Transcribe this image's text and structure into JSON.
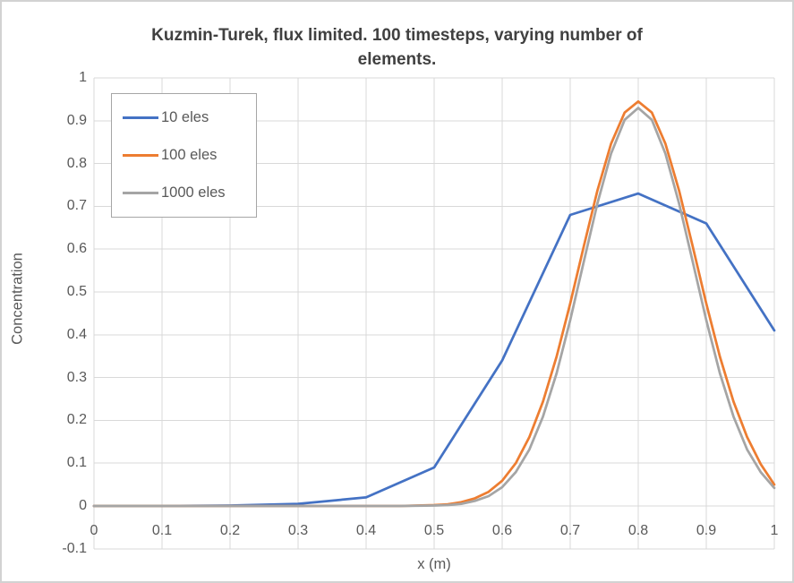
{
  "colors": {
    "series_blue": "#4472C4",
    "series_orange": "#ED7D31",
    "series_gray": "#A5A5A5",
    "gridline": "#D9D9D9",
    "axis_text": "#595959",
    "title_text": "#404040",
    "legend_border": "#A6A6A6",
    "frame_border": "#D2D2D2"
  },
  "chart_data": {
    "type": "line",
    "title": "Kuzmin-Turek, flux limited. 100 timesteps, varying number of elements.",
    "title_lines": [
      "Kuzmin-Turek, flux limited. 100 timesteps, varying number of",
      "elements."
    ],
    "xlabel": "x (m)",
    "ylabel": "Concentration",
    "xlim": [
      0,
      1
    ],
    "ylim": [
      -0.1,
      1
    ],
    "grid": true,
    "legend_position": "inside-top-left",
    "xticks": {
      "values": [
        0,
        0.1,
        0.2,
        0.3,
        0.4,
        0.5,
        0.6,
        0.7,
        0.8,
        0.9,
        1
      ],
      "labels": [
        "0",
        "0.1",
        "0.2",
        "0.3",
        "0.4",
        "0.5",
        "0.6",
        "0.7",
        "0.8",
        "0.9",
        "1"
      ]
    },
    "yticks": {
      "values": [
        1,
        0.9,
        0.8,
        0.7,
        0.6,
        0.5,
        0.4,
        0.3,
        0.2,
        0.1,
        0,
        -0.1
      ],
      "labels": [
        "1",
        "0.9",
        "0.8",
        "0.7",
        "0.6",
        "0.5",
        "0.4",
        "0.3",
        "0.2",
        "0.1",
        "0",
        "-0.1"
      ]
    },
    "series": [
      {
        "name": "10 eles",
        "color": "#4472C4",
        "points": [
          [
            0,
            0
          ],
          [
            0.1,
            0
          ],
          [
            0.2,
            0.001
          ],
          [
            0.3,
            0.005
          ],
          [
            0.4,
            0.02
          ],
          [
            0.5,
            0.09
          ],
          [
            0.6,
            0.34
          ],
          [
            0.7,
            0.68
          ],
          [
            0.8,
            0.73
          ],
          [
            0.9,
            0.66
          ],
          [
            1,
            0.41
          ]
        ]
      },
      {
        "name": "100 eles",
        "color": "#ED7D31",
        "points": [
          [
            0,
            0
          ],
          [
            0.1,
            0
          ],
          [
            0.2,
            0
          ],
          [
            0.3,
            0
          ],
          [
            0.4,
            0
          ],
          [
            0.45,
            0
          ],
          [
            0.5,
            0.002
          ],
          [
            0.52,
            0.004
          ],
          [
            0.54,
            0.009
          ],
          [
            0.56,
            0.018
          ],
          [
            0.58,
            0.033
          ],
          [
            0.6,
            0.059
          ],
          [
            0.62,
            0.1
          ],
          [
            0.64,
            0.161
          ],
          [
            0.66,
            0.244
          ],
          [
            0.68,
            0.349
          ],
          [
            0.7,
            0.473
          ],
          [
            0.72,
            0.607
          ],
          [
            0.74,
            0.737
          ],
          [
            0.76,
            0.846
          ],
          [
            0.78,
            0.919
          ],
          [
            0.8,
            0.945
          ],
          [
            0.82,
            0.919
          ],
          [
            0.84,
            0.846
          ],
          [
            0.86,
            0.737
          ],
          [
            0.88,
            0.607
          ],
          [
            0.9,
            0.473
          ],
          [
            0.92,
            0.349
          ],
          [
            0.94,
            0.244
          ],
          [
            0.96,
            0.161
          ],
          [
            0.98,
            0.098
          ],
          [
            1,
            0.05
          ]
        ]
      },
      {
        "name": "1000 eles",
        "color": "#A5A5A5",
        "points": [
          [
            0,
            0
          ],
          [
            0.1,
            0
          ],
          [
            0.2,
            0
          ],
          [
            0.3,
            0
          ],
          [
            0.4,
            0
          ],
          [
            0.45,
            0
          ],
          [
            0.5,
            0.001
          ],
          [
            0.52,
            0.002
          ],
          [
            0.54,
            0.005
          ],
          [
            0.56,
            0.012
          ],
          [
            0.58,
            0.023
          ],
          [
            0.6,
            0.044
          ],
          [
            0.62,
            0.079
          ],
          [
            0.64,
            0.132
          ],
          [
            0.66,
            0.209
          ],
          [
            0.68,
            0.31
          ],
          [
            0.7,
            0.434
          ],
          [
            0.72,
            0.571
          ],
          [
            0.74,
            0.707
          ],
          [
            0.76,
            0.823
          ],
          [
            0.78,
            0.902
          ],
          [
            0.8,
            0.93
          ],
          [
            0.82,
            0.902
          ],
          [
            0.84,
            0.823
          ],
          [
            0.86,
            0.707
          ],
          [
            0.88,
            0.571
          ],
          [
            0.9,
            0.434
          ],
          [
            0.92,
            0.31
          ],
          [
            0.94,
            0.209
          ],
          [
            0.96,
            0.132
          ],
          [
            0.98,
            0.079
          ],
          [
            1,
            0.042
          ]
        ]
      }
    ]
  }
}
